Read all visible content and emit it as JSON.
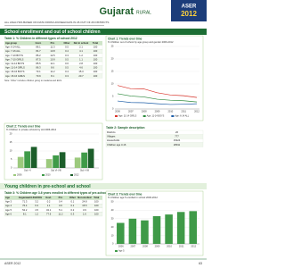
{
  "header": {
    "state": "Gujarat",
    "region": "RURAL",
    "logo_top": "ASER",
    "logo_year": "2012",
    "note": "ALL ANALYSIS BASED ON DATA FROM HOUSEHOLDS IN 26 OUT OF 26 DISTRICTS"
  },
  "section1": "School enrollment and out of school children",
  "table1": {
    "title": "Table 1: % Children in different types of school 2012",
    "columns": [
      "Age group",
      "Govt.",
      "Pvt.",
      "Other",
      "Not in school",
      "Total"
    ],
    "rows": [
      [
        "Age: 6-14 ALL",
        86.1,
        11.3,
        0.5,
        2.1,
        100
      ],
      [
        "Age: 7-16 ALL",
        84.7,
        10.8,
        0.4,
        4.1,
        100
      ],
      [
        "Age: 7-10 BOYS",
        86.2,
        12.5,
        0.3,
        1.2,
        100
      ],
      [
        "Age: 7-10 GIRLS",
        87.5,
        10.9,
        0.5,
        1.1,
        100
      ],
      [
        "Age: 11-14 BOYS",
        85.5,
        11.1,
        0.6,
        2.8,
        100
      ],
      [
        "Age: 11-14 GIRLS",
        86.3,
        8.6,
        0.5,
        4.6,
        100
      ],
      [
        "Age: 15-16 BOYS",
        73.1,
        11.2,
        0.4,
        15.3,
        100
      ],
      [
        "Age: 15-16 GIRLS",
        70.9,
        8.1,
        0.3,
        20.7,
        100
      ]
    ],
    "note": "Note: 'Other' includes children going to madarsa and EGS."
  },
  "chart1": {
    "type": "line",
    "title": "Chart 1: Trends over time",
    "subtitle": "% Children out of school by age group and gender 2006-2012",
    "x": [
      2006,
      2007,
      2008,
      2009,
      2010,
      2011,
      2012
    ],
    "ylim": [
      0,
      25
    ],
    "yticks": [
      0,
      5,
      10,
      15,
      20,
      25
    ],
    "series": [
      {
        "name": "Age: 11-14 GIRLS",
        "color": "#d9342b",
        "values": [
          9.4,
          8.1,
          8.0,
          6.5,
          5.6,
          5.3,
          4.6
        ]
      },
      {
        "name": "Age: 11-14 BOYS",
        "color": "#2e8b3e",
        "values": [
          6.1,
          5.2,
          4.8,
          3.9,
          3.5,
          3.3,
          2.8
        ]
      },
      {
        "name": "Age: 6-14 ALL",
        "color": "#1f5fa8",
        "values": [
          3.2,
          2.6,
          2.5,
          2.1,
          1.8,
          1.9,
          2.1
        ]
      }
    ]
  },
  "chart2": {
    "type": "bar",
    "title": "Chart 2: Trends over time",
    "subtitle": "% Children in private schools by std 2006-2012",
    "categories": [
      "Std I-V",
      "Std VI-VIII",
      "Std I-VIII"
    ],
    "ylim": [
      0,
      20
    ],
    "yticks": [
      0,
      5,
      10,
      15,
      20
    ],
    "series": [
      {
        "name": "2006",
        "color": "#9cc97d",
        "values": [
          6.5,
          5.2,
          6.1
        ]
      },
      {
        "name": "2010",
        "color": "#3f9a48",
        "values": [
          9.8,
          7.4,
          9.1
        ]
      },
      {
        "name": "2012",
        "color": "#1c5e2a",
        "values": [
          12.4,
          9.3,
          11.3
        ]
      }
    ]
  },
  "table2": {
    "title": "Table 2: Sample description",
    "rows": [
      [
        "Districts",
        26
      ],
      [
        "Villages",
        777
      ],
      [
        "Households",
        15424
      ],
      [
        "Children age 3-16",
        28911
      ]
    ]
  },
  "section2": "Young children in pre-school and school",
  "table3": {
    "title": "Table 3: % Children age 3-6 years enrolled in different types of pre-schools and schools 2012",
    "columns": [
      "Age",
      "Anganwadi",
      "LKG/UKG",
      "Govt.",
      "Pvt.",
      "Other",
      "Not enrolled",
      "Total"
    ],
    "rows": [
      [
        "Age 3",
        71.3,
        3.2,
        0.2,
        0.4,
        0.1,
        24.8,
        100
      ],
      [
        "Age 4",
        76.4,
        6.3,
        1.1,
        0.6,
        0.1,
        15.5,
        100
      ],
      [
        "Age 5",
        52.2,
        4.5,
        34.1,
        5.1,
        0.2,
        3.9,
        100
      ],
      [
        "Age 6",
        8.1,
        1.2,
        77.6,
        11.2,
        0.3,
        1.6,
        100
      ]
    ]
  },
  "chart3": {
    "type": "bar",
    "title": "Chart 3: Trends over time",
    "subtitle": "% Children age 5 enrolled in school 2006-2012",
    "categories": [
      "2006",
      "2007",
      "2008",
      "2009",
      "2010",
      "2011",
      "2012"
    ],
    "ylim": [
      0,
      50
    ],
    "yticks": [
      0,
      10,
      20,
      30,
      40,
      50
    ],
    "series": [
      {
        "name": "Age 5",
        "color": "#3f9a48",
        "values": [
          25,
          30,
          28,
          33,
          35,
          38,
          39
        ]
      }
    ]
  },
  "footer": {
    "left": "ASER 2012",
    "page": "63"
  }
}
